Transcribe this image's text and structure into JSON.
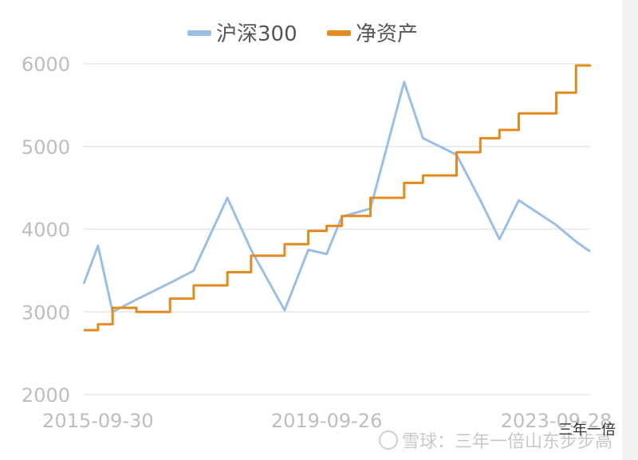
{
  "chart_data": {
    "type": "line",
    "title": "",
    "xlabel": "",
    "ylabel": "",
    "ylim": [
      2000,
      6000
    ],
    "yticks": [
      2000,
      3000,
      4000,
      5000,
      6000
    ],
    "xticks": [
      "2015-09-30",
      "2019-09-26",
      "2023-09-28"
    ],
    "x": [
      "2015-07",
      "2015-09-30",
      "2016-01",
      "2016-06",
      "2017-01",
      "2017-06",
      "2018-01",
      "2018-06",
      "2019-01",
      "2019-06",
      "2019-09-26",
      "2020-01",
      "2020-07",
      "2021-02",
      "2021-06",
      "2022-01",
      "2022-06",
      "2022-10",
      "2023-02",
      "2023-09-28",
      "2024-02",
      "2024-05"
    ],
    "grid": true,
    "legend": "top-center",
    "series": [
      {
        "name": "沪深300",
        "color": "#9bbfe3",
        "style": "line",
        "values": [
          3340,
          3800,
          3000,
          3150,
          3350,
          3500,
          4380,
          3750,
          3020,
          3750,
          3700,
          4150,
          4250,
          5780,
          5100,
          4900,
          4350,
          3880,
          4350,
          4050,
          3850,
          3730
        ]
      },
      {
        "name": "净资产",
        "color": "#e58a1f",
        "style": "step",
        "values": [
          2780,
          2850,
          3050,
          3000,
          3160,
          3320,
          3480,
          3680,
          3820,
          3980,
          4040,
          4160,
          4380,
          4560,
          4650,
          4930,
          5100,
          5200,
          5400,
          5650,
          5980,
          5990
        ]
      }
    ]
  },
  "watermark": {
    "main": "雪球：三年一倍山东步步高",
    "corner": "三年一倍"
  }
}
